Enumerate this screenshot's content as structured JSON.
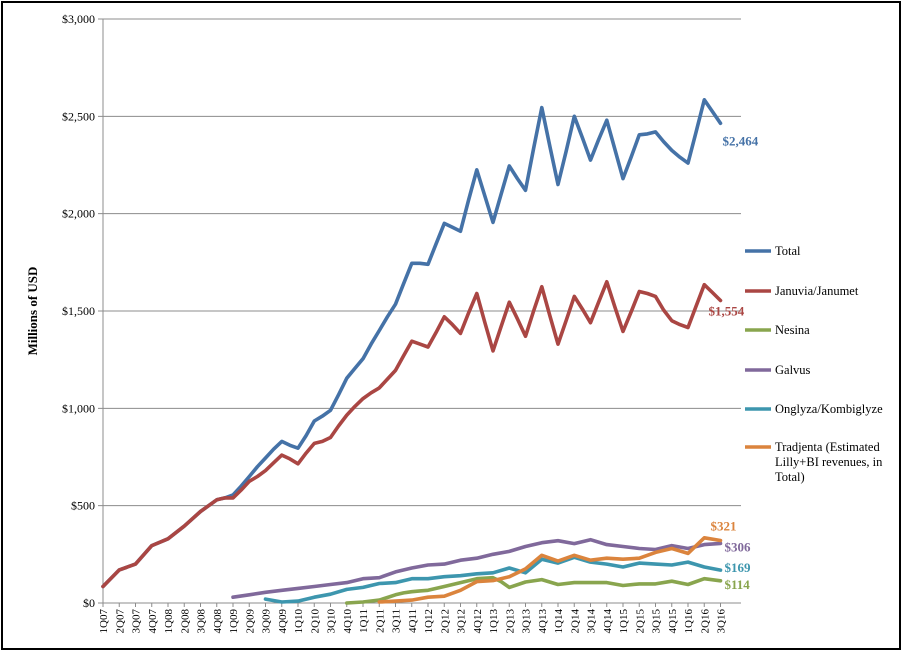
{
  "chart_data": {
    "type": "line",
    "ylabel": "Millions of USD",
    "xlabel": "",
    "ylim": [
      0,
      3000
    ],
    "yticks": [
      0,
      500,
      1000,
      1500,
      2000,
      2500,
      3000
    ],
    "ytick_labels": [
      "$0",
      "$500",
      "$1,000",
      "$1,500",
      "$2,000",
      "$2,500",
      "$3,000"
    ],
    "grid": "horizontal",
    "legend_position": "right",
    "categories": [
      "1Q07",
      "2Q07",
      "3Q07",
      "4Q07",
      "1Q08",
      "2Q08",
      "3Q08",
      "4Q08",
      "1Q09",
      "2Q09",
      "3Q09",
      "4Q09",
      "1Q10",
      "2Q10",
      "3Q10",
      "4Q10",
      "1Q11",
      "2Q11",
      "3Q11",
      "4Q11",
      "1Q12",
      "2Q12",
      "3Q12",
      "4Q12",
      "1Q13",
      "2Q13",
      "3Q13",
      "4Q13",
      "1Q14",
      "2Q14",
      "3Q14",
      "4Q14",
      "1Q15",
      "2Q15",
      "3Q15",
      "4Q15",
      "1Q16",
      "2Q16",
      "3Q16"
    ],
    "series": [
      {
        "name": "Total",
        "color": "#4572A7",
        "end_label": "$2,464",
        "values": [
          [
            0,
            85
          ],
          [
            1,
            170
          ],
          [
            2,
            200
          ],
          [
            3,
            295
          ],
          [
            4,
            330
          ],
          [
            5,
            395
          ],
          [
            6,
            470
          ],
          [
            7,
            530
          ],
          [
            7.5,
            540
          ],
          [
            8,
            555
          ],
          [
            8.5,
            600
          ],
          [
            9,
            650
          ],
          [
            9.5,
            700
          ],
          [
            10,
            745
          ],
          [
            10.5,
            790
          ],
          [
            11,
            830
          ],
          [
            11.5,
            810
          ],
          [
            12,
            795
          ],
          [
            12.5,
            860
          ],
          [
            13,
            935
          ],
          [
            13.5,
            960
          ],
          [
            14,
            990
          ],
          [
            14.5,
            1070
          ],
          [
            15,
            1155
          ],
          [
            15.5,
            1205
          ],
          [
            16,
            1255
          ],
          [
            16.5,
            1330
          ],
          [
            17,
            1400
          ],
          [
            17.5,
            1470
          ],
          [
            18,
            1535
          ],
          [
            18.5,
            1640
          ],
          [
            19,
            1745
          ],
          [
            19.5,
            1745
          ],
          [
            20,
            1740
          ],
          [
            20.5,
            1845
          ],
          [
            21,
            1950
          ],
          [
            21.5,
            1930
          ],
          [
            22,
            1910
          ],
          [
            22.5,
            2070
          ],
          [
            23,
            2225
          ],
          [
            23.5,
            2090
          ],
          [
            24,
            1955
          ],
          [
            24.5,
            2100
          ],
          [
            25,
            2245
          ],
          [
            25.5,
            2180
          ],
          [
            26,
            2120
          ],
          [
            26.5,
            2335
          ],
          [
            27,
            2545
          ],
          [
            27.5,
            2345
          ],
          [
            28,
            2150
          ],
          [
            28.5,
            2320
          ],
          [
            29,
            2500
          ],
          [
            29.5,
            2390
          ],
          [
            30,
            2275
          ],
          [
            30.5,
            2380
          ],
          [
            31,
            2480
          ],
          [
            31.5,
            2330
          ],
          [
            32,
            2180
          ],
          [
            32.5,
            2290
          ],
          [
            33,
            2405
          ],
          [
            33.5,
            2410
          ],
          [
            34,
            2420
          ],
          [
            34.5,
            2370
          ],
          [
            35,
            2325
          ],
          [
            35.5,
            2290
          ],
          [
            36,
            2260
          ],
          [
            36.5,
            2420
          ],
          [
            37,
            2585
          ],
          [
            37.5,
            2525
          ],
          [
            38,
            2464
          ]
        ]
      },
      {
        "name": "Januvia/Janumet",
        "color": "#AA4643",
        "end_label": "$1,554",
        "values": [
          [
            0,
            85
          ],
          [
            1,
            170
          ],
          [
            2,
            200
          ],
          [
            3,
            295
          ],
          [
            4,
            330
          ],
          [
            5,
            395
          ],
          [
            6,
            470
          ],
          [
            7,
            530
          ],
          [
            7.5,
            540
          ],
          [
            8,
            540
          ],
          [
            8.5,
            580
          ],
          [
            9,
            625
          ],
          [
            9.5,
            650
          ],
          [
            10,
            680
          ],
          [
            10.5,
            720
          ],
          [
            11,
            760
          ],
          [
            11.5,
            740
          ],
          [
            12,
            715
          ],
          [
            12.5,
            770
          ],
          [
            13,
            820
          ],
          [
            13.5,
            830
          ],
          [
            14,
            850
          ],
          [
            14.5,
            910
          ],
          [
            15,
            965
          ],
          [
            15.5,
            1010
          ],
          [
            16,
            1050
          ],
          [
            16.5,
            1080
          ],
          [
            17,
            1105
          ],
          [
            17.5,
            1150
          ],
          [
            18,
            1195
          ],
          [
            18.5,
            1270
          ],
          [
            19,
            1345
          ],
          [
            19.5,
            1330
          ],
          [
            20,
            1315
          ],
          [
            20.5,
            1390
          ],
          [
            21,
            1470
          ],
          [
            21.5,
            1430
          ],
          [
            22,
            1385
          ],
          [
            22.5,
            1490
          ],
          [
            23,
            1590
          ],
          [
            23.5,
            1440
          ],
          [
            24,
            1295
          ],
          [
            24.5,
            1420
          ],
          [
            25,
            1545
          ],
          [
            25.5,
            1460
          ],
          [
            26,
            1370
          ],
          [
            26.5,
            1500
          ],
          [
            27,
            1625
          ],
          [
            27.5,
            1475
          ],
          [
            28,
            1330
          ],
          [
            28.5,
            1450
          ],
          [
            29,
            1575
          ],
          [
            29.5,
            1510
          ],
          [
            30,
            1440
          ],
          [
            30.5,
            1545
          ],
          [
            31,
            1650
          ],
          [
            31.5,
            1520
          ],
          [
            32,
            1395
          ],
          [
            32.5,
            1495
          ],
          [
            33,
            1600
          ],
          [
            33.5,
            1590
          ],
          [
            34,
            1575
          ],
          [
            34.5,
            1505
          ],
          [
            35,
            1450
          ],
          [
            35.5,
            1430
          ],
          [
            36,
            1415
          ],
          [
            36.5,
            1525
          ],
          [
            37,
            1635
          ],
          [
            37.5,
            1595
          ],
          [
            38,
            1554
          ]
        ]
      },
      {
        "name": "Nesina",
        "color": "#89A54E",
        "end_label": "$114",
        "values": [
          [
            15,
            0
          ],
          [
            16,
            5
          ],
          [
            17,
            15
          ],
          [
            17.5,
            28
          ],
          [
            18,
            42
          ],
          [
            18.5,
            52
          ],
          [
            19,
            58
          ],
          [
            19.5,
            62
          ],
          [
            20,
            65
          ],
          [
            21,
            85
          ],
          [
            22,
            105
          ],
          [
            23,
            125
          ],
          [
            24,
            130
          ],
          [
            24.5,
            110
          ],
          [
            25,
            80
          ],
          [
            26,
            108
          ],
          [
            27,
            120
          ],
          [
            28,
            95
          ],
          [
            29,
            105
          ],
          [
            30,
            105
          ],
          [
            31,
            105
          ],
          [
            32,
            90
          ],
          [
            33,
            98
          ],
          [
            34,
            98
          ],
          [
            35,
            112
          ],
          [
            36,
            95
          ],
          [
            37,
            125
          ],
          [
            38,
            114
          ]
        ]
      },
      {
        "name": "Galvus",
        "color": "#80699B",
        "end_label": "$306",
        "values": [
          [
            8,
            30
          ],
          [
            9,
            42
          ],
          [
            10,
            55
          ],
          [
            11,
            65
          ],
          [
            12,
            75
          ],
          [
            13,
            85
          ],
          [
            14,
            95
          ],
          [
            15,
            105
          ],
          [
            16,
            125
          ],
          [
            17,
            130
          ],
          [
            18,
            160
          ],
          [
            19,
            180
          ],
          [
            20,
            195
          ],
          [
            21,
            200
          ],
          [
            22,
            220
          ],
          [
            23,
            230
          ],
          [
            24,
            250
          ],
          [
            25,
            265
          ],
          [
            26,
            290
          ],
          [
            27,
            310
          ],
          [
            28,
            320
          ],
          [
            29,
            305
          ],
          [
            30,
            325
          ],
          [
            31,
            300
          ],
          [
            32,
            290
          ],
          [
            33,
            280
          ],
          [
            34,
            275
          ],
          [
            35,
            295
          ],
          [
            36,
            280
          ],
          [
            37,
            300
          ],
          [
            38,
            306
          ]
        ]
      },
      {
        "name": "Onglyza/Kombiglyze",
        "color": "#3D96AE",
        "end_label": "$169",
        "values": [
          [
            10,
            20
          ],
          [
            11,
            5
          ],
          [
            12,
            10
          ],
          [
            13,
            30
          ],
          [
            14,
            45
          ],
          [
            15,
            70
          ],
          [
            16,
            80
          ],
          [
            17,
            100
          ],
          [
            18,
            105
          ],
          [
            19,
            125
          ],
          [
            20,
            125
          ],
          [
            21,
            135
          ],
          [
            22,
            140
          ],
          [
            23,
            150
          ],
          [
            24,
            155
          ],
          [
            25,
            180
          ],
          [
            26,
            155
          ],
          [
            27,
            225
          ],
          [
            28,
            205
          ],
          [
            29,
            235
          ],
          [
            30,
            210
          ],
          [
            31,
            200
          ],
          [
            32,
            185
          ],
          [
            33,
            205
          ],
          [
            34,
            200
          ],
          [
            35,
            195
          ],
          [
            36,
            210
          ],
          [
            37,
            185
          ],
          [
            38,
            169
          ]
        ]
      },
      {
        "name": "Tradjenta (Estimated Lilly+BI revenues, in Total)",
        "legend_lines": [
          "Tradjenta (Estimated",
          "Lilly+BI revenues, in",
          "Total)"
        ],
        "color": "#DB843D",
        "end_label": "$321",
        "values": [
          [
            17,
            5
          ],
          [
            18,
            10
          ],
          [
            19,
            15
          ],
          [
            20,
            30
          ],
          [
            21,
            35
          ],
          [
            22,
            65
          ],
          [
            23,
            110
          ],
          [
            24,
            115
          ],
          [
            25,
            135
          ],
          [
            26,
            175
          ],
          [
            27,
            245
          ],
          [
            28,
            215
          ],
          [
            29,
            245
          ],
          [
            30,
            220
          ],
          [
            31,
            230
          ],
          [
            32,
            225
          ],
          [
            33,
            230
          ],
          [
            34,
            260
          ],
          [
            35,
            280
          ],
          [
            36,
            255
          ],
          [
            37,
            335
          ],
          [
            38,
            321
          ]
        ]
      }
    ]
  }
}
